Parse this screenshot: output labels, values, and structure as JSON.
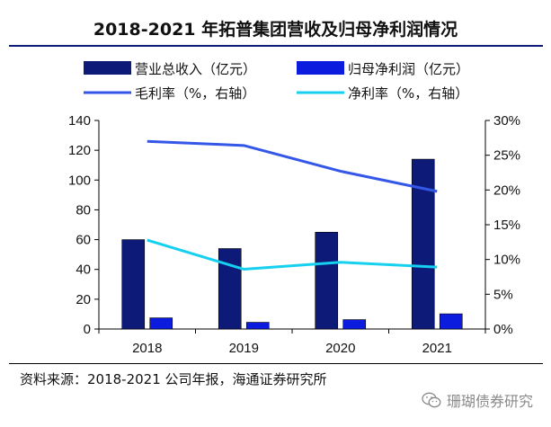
{
  "page": {
    "title": "2018-2021 年拓普集团营收及归母净利润情况",
    "source": "资料来源：2018-2021 公司年报，海通证券研究所",
    "watermark": "珊瑚债券研究",
    "watermark_icon": "wechat-logo"
  },
  "chart_data": {
    "type": "bar",
    "title": "2018-2021 年拓普集团营收及归母净利润情况",
    "categories": [
      "2018",
      "2019",
      "2020",
      "2021"
    ],
    "series": [
      {
        "name": "营业总收入（亿元）",
        "kind": "bar",
        "axis": "left",
        "color": "#0e1a78",
        "values": [
          60,
          54,
          65,
          114
        ]
      },
      {
        "name": "归母净利润（亿元）",
        "kind": "bar",
        "axis": "left",
        "color": "#0b1cdf",
        "values": [
          7.5,
          4.5,
          6.3,
          10.2
        ]
      },
      {
        "name": "毛利率（%，右轴）",
        "kind": "line",
        "axis": "right",
        "color": "#3457e8",
        "values": [
          27.0,
          26.4,
          22.7,
          19.8
        ]
      },
      {
        "name": "净利率（%，右轴）",
        "kind": "line",
        "axis": "right",
        "color": "#16d0f0",
        "values": [
          12.8,
          8.6,
          9.6,
          8.9
        ]
      }
    ],
    "y_left": {
      "min": 0,
      "max": 140,
      "step": 20,
      "ticks": [
        "0",
        "20",
        "40",
        "60",
        "80",
        "100",
        "120",
        "140"
      ]
    },
    "y_right": {
      "min": 0,
      "max": 30,
      "step": 5,
      "ticks": [
        "0%",
        "5%",
        "10%",
        "15%",
        "20%",
        "25%",
        "30%"
      ]
    },
    "grid": false,
    "legend_position": "top"
  }
}
